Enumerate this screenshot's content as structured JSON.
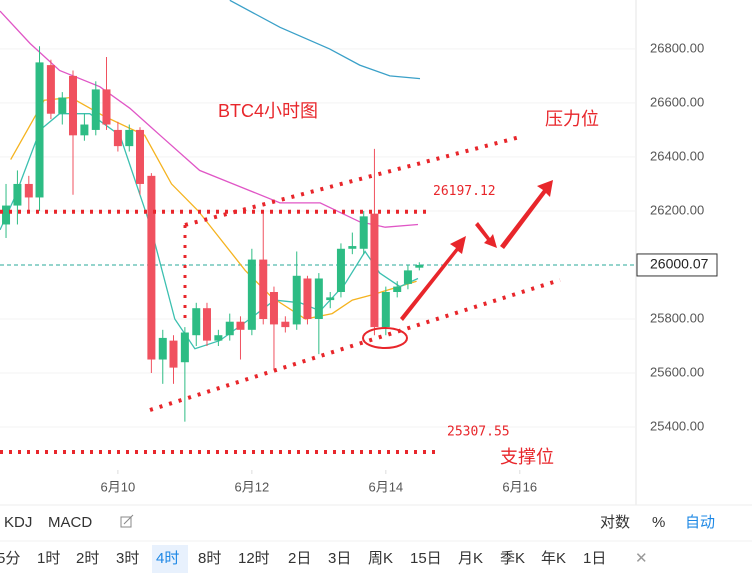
{
  "chart_data": {
    "type": "candlestick",
    "title": "BTC4小时图",
    "xlim": [
      8.24,
      17.72
    ],
    "xticks": [
      {
        "value": 10,
        "label": "6月10"
      },
      {
        "value": 12,
        "label": "6月12"
      },
      {
        "value": 14,
        "label": "6月14"
      },
      {
        "value": 16,
        "label": "6月16"
      }
    ],
    "ylim": [
      25241,
      26981
    ],
    "yticks": [
      {
        "value": 25400,
        "label": "25400.00"
      },
      {
        "value": 25600,
        "label": "25600.00"
      },
      {
        "value": 25800,
        "label": "25800.00"
      },
      {
        "value": 26200,
        "label": "26200.00"
      },
      {
        "value": 26400,
        "label": "26400.00"
      },
      {
        "value": 26600,
        "label": "26600.00"
      },
      {
        "value": 26800,
        "label": "26800.00"
      }
    ],
    "grid": true,
    "up_color": "#2dbc84",
    "down_color": "#f0515f",
    "x": [
      8.33,
      8.5,
      8.67,
      8.83,
      9.0,
      9.17,
      9.33,
      9.5,
      9.67,
      9.83,
      10.0,
      10.17,
      10.33,
      10.5,
      10.67,
      10.83,
      11.0,
      11.17,
      11.33,
      11.5,
      11.67,
      11.83,
      12.0,
      12.17,
      12.33,
      12.5,
      12.67,
      12.83,
      13.0,
      13.17,
      13.33,
      13.5,
      13.67,
      13.83,
      14.0,
      14.17,
      14.33,
      14.5
    ],
    "open": [
      26150,
      26220,
      26300,
      26250,
      26740,
      26560,
      26700,
      26480,
      26500,
      26650,
      26500,
      26440,
      26500,
      26330,
      25650,
      25720,
      25640,
      25740,
      25840,
      25720,
      25740,
      25790,
      25760,
      26020,
      25900,
      25790,
      25780,
      25950,
      25800,
      25870,
      25900,
      26060,
      26060,
      26190,
      25770,
      25900,
      25930,
      25990
    ],
    "high": [
      26300,
      26350,
      26330,
      26810,
      26760,
      26640,
      26720,
      26560,
      26680,
      26770,
      26530,
      26520,
      26510,
      26340,
      25760,
      25740,
      25770,
      25860,
      25860,
      25760,
      25820,
      25810,
      26060,
      26200,
      25920,
      25810,
      26050,
      25960,
      25970,
      25900,
      26080,
      26120,
      26200,
      26430,
      25920,
      25940,
      26000,
      26010
    ],
    "low": [
      26100,
      26150,
      26200,
      26200,
      26540,
      26520,
      26260,
      26460,
      26480,
      26500,
      26420,
      26420,
      26260,
      25600,
      25560,
      25560,
      25420,
      25700,
      25700,
      25700,
      25720,
      25650,
      25740,
      25780,
      25610,
      25750,
      25760,
      25780,
      25670,
      25840,
      25880,
      26040,
      26040,
      25740,
      25740,
      25880,
      25910,
      25980
    ],
    "close": [
      26220,
      26300,
      26250,
      26750,
      26560,
      26620,
      26480,
      26520,
      26650,
      26520,
      26440,
      26500,
      26300,
      25650,
      25730,
      25620,
      25750,
      25840,
      25720,
      25740,
      25790,
      25760,
      26020,
      25800,
      25780,
      25770,
      25960,
      25800,
      25950,
      25880,
      26060,
      26070,
      26180,
      25770,
      25900,
      25920,
      25980,
      26000
    ],
    "ma": [
      {
        "color": "#f5b31f",
        "x": [
          8.4,
          8.9,
          9.3,
          9.8,
          10.4,
          10.8,
          11.2,
          11.9,
          12.3,
          12.8,
          13.2,
          13.5,
          13.8,
          14.2,
          14.46
        ],
        "values": [
          26390,
          26610,
          26620,
          26550,
          26480,
          26300,
          26200,
          25980,
          25880,
          25800,
          25820,
          25870,
          25890,
          25920,
          25940
        ]
      },
      {
        "color": "#3cc0b0",
        "x": [
          8.24,
          8.46,
          8.84,
          9.13,
          9.58,
          10.03,
          10.48,
          10.85,
          11.15,
          11.52,
          11.97,
          12.34,
          12.72,
          13.02,
          13.39,
          13.69,
          13.91,
          14.21,
          14.48
        ],
        "values": [
          26130,
          26250,
          26500,
          26560,
          26560,
          26480,
          26150,
          25800,
          25690,
          25720,
          25800,
          25870,
          25860,
          25830,
          25930,
          26050,
          25970,
          25920,
          25950
        ]
      },
      {
        "color": "#e056c6",
        "x": [
          8.24,
          8.69,
          9.13,
          9.73,
          10.18,
          10.63,
          11.22,
          11.82,
          12.42,
          13.02,
          13.61,
          13.99,
          14.48
        ],
        "values": [
          26940,
          26820,
          26720,
          26660,
          26580,
          26480,
          26350,
          26290,
          26230,
          26230,
          26160,
          26140,
          26150
        ]
      },
      {
        "color": "#3aa0c8",
        "x": [
          11.67,
          12.42,
          13.16,
          13.61,
          14.06,
          14.51
        ],
        "values": [
          26980,
          26880,
          26800,
          26740,
          26700,
          26690
        ]
      }
    ],
    "last_price": {
      "value": 26000.07,
      "label": "26000.07"
    },
    "levels": [
      {
        "value": 26197.12,
        "label": "26197.12"
      },
      {
        "value": 25307.55,
        "label": "25307.55"
      }
    ],
    "annotations": [
      "压力位",
      "支撑位"
    ]
  },
  "toolbar": {
    "indicators": [
      "KDJ",
      "MACD"
    ],
    "options": [
      "对数",
      "%",
      "自动"
    ],
    "periods": [
      "5分",
      "1时",
      "2时",
      "3时",
      "4时",
      "8时",
      "12时",
      "2日",
      "3日",
      "周K",
      "15日",
      "月K",
      "季K",
      "年K",
      "1日"
    ],
    "active_period": 4
  }
}
